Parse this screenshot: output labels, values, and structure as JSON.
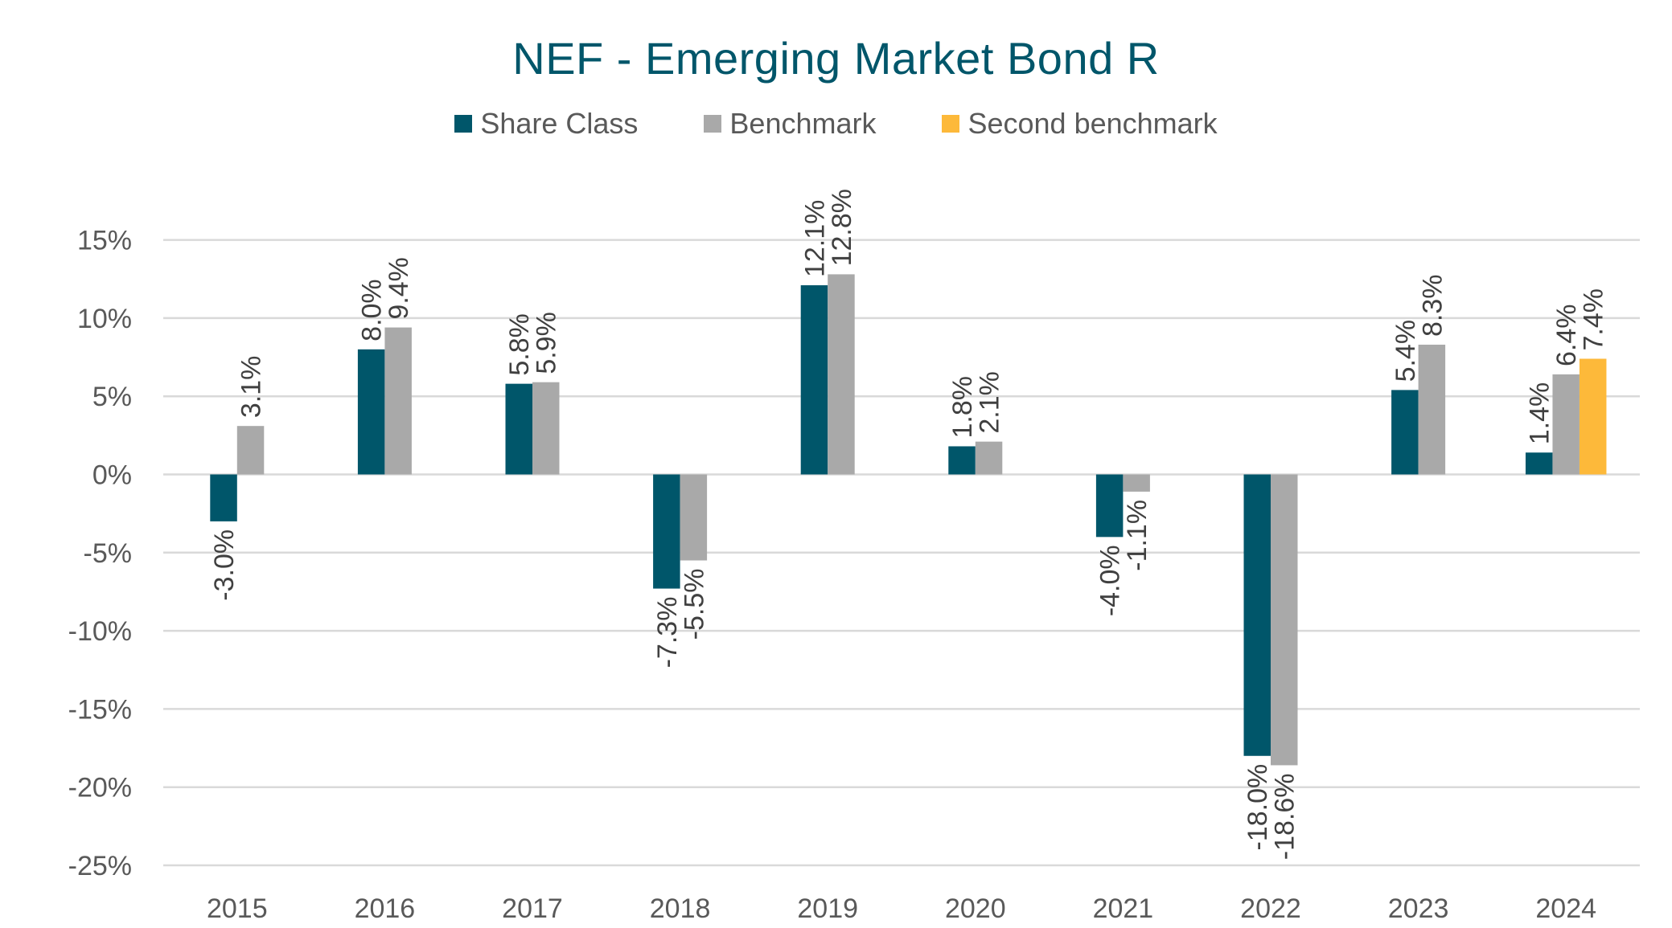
{
  "chart_data": {
    "type": "bar",
    "title": "NEF - Emerging Market Bond R",
    "xlabel": "",
    "ylabel": "",
    "categories": [
      "2015",
      "2016",
      "2017",
      "2018",
      "2019",
      "2020",
      "2021",
      "2022",
      "2023",
      "2024"
    ],
    "series": [
      {
        "name": "Share Class",
        "color": "#00566A",
        "values": [
          -3.0,
          8.0,
          5.8,
          -7.3,
          12.1,
          1.8,
          -4.0,
          -18.0,
          5.4,
          1.4
        ]
      },
      {
        "name": "Benchmark",
        "color": "#A9A9A9",
        "values": [
          3.1,
          9.4,
          5.9,
          -5.5,
          12.8,
          2.1,
          -1.1,
          -18.6,
          8.3,
          6.4
        ]
      },
      {
        "name": "Second benchmark",
        "color": "#FDB93A",
        "values": [
          null,
          null,
          null,
          null,
          null,
          null,
          null,
          null,
          null,
          7.4
        ]
      }
    ],
    "ylim": [
      -25,
      15
    ],
    "yticks": [
      15,
      10,
      5,
      0,
      -5,
      -10,
      -15,
      -20,
      -25
    ],
    "ytick_labels": [
      "15%",
      "10%",
      "5%",
      "0%",
      "-5%",
      "-10%",
      "-15%",
      "-20%",
      "-25%"
    ],
    "value_format": "percent_1dp",
    "grid": true,
    "legend_position": "top-center",
    "data_labels": "rotated-vertical"
  }
}
